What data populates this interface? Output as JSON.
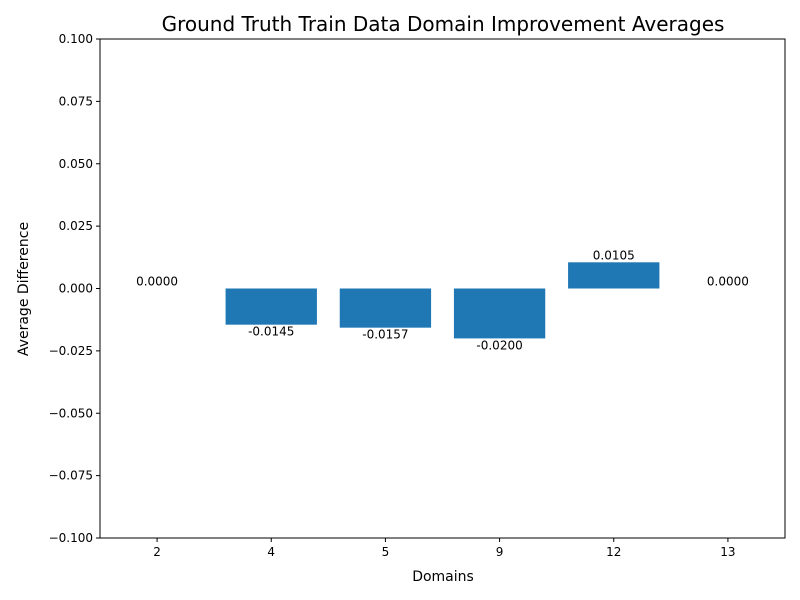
{
  "chart_data": {
    "type": "bar",
    "title": "Ground Truth Train Data Domain Improvement Averages",
    "xlabel": "Domains",
    "ylabel": "Average Difference",
    "categories": [
      "2",
      "4",
      "5",
      "9",
      "12",
      "13"
    ],
    "values": [
      0.0,
      -0.0145,
      -0.0157,
      -0.02,
      0.0105,
      0.0
    ],
    "data_labels": [
      "0.0000",
      "-0.0145",
      "-0.0157",
      "-0.0200",
      "0.0105",
      "0.0000"
    ],
    "ylim": [
      -0.1,
      0.1
    ],
    "yticks": [
      -0.1,
      -0.075,
      -0.05,
      -0.025,
      0.0,
      0.025,
      0.05,
      0.075,
      0.1
    ],
    "ytick_labels": [
      "−0.100",
      "−0.075",
      "−0.050",
      "−0.025",
      "0.000",
      "0.025",
      "0.050",
      "0.075",
      "0.100"
    ],
    "bar_color": "#1f77b4",
    "grid": false,
    "legend": false
  }
}
